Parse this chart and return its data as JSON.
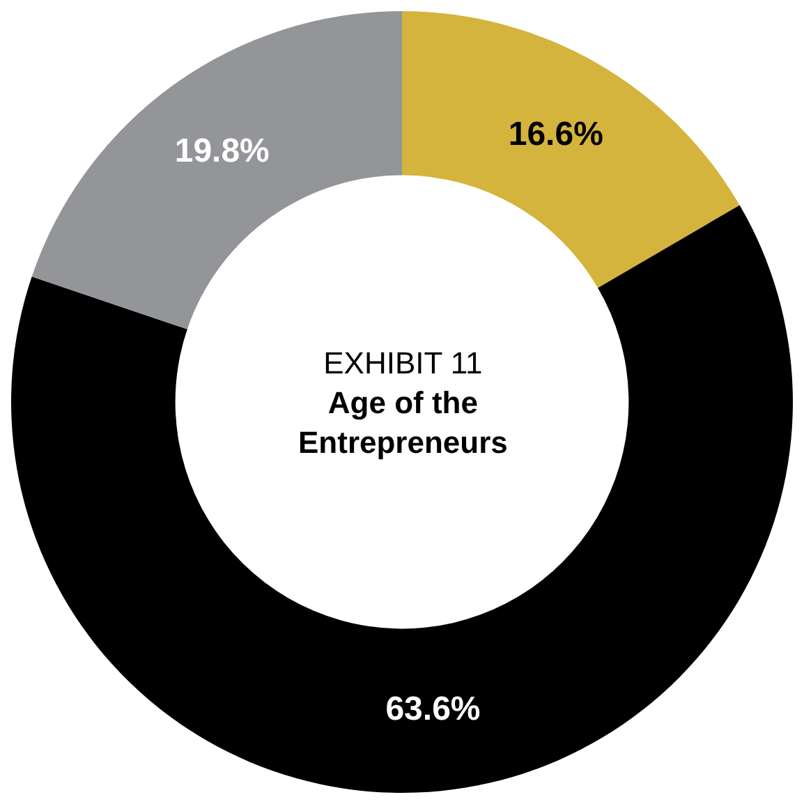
{
  "chart_data": {
    "type": "donut",
    "subtitle": "EXHIBIT 11",
    "title": "Age of the Entrepreneurs",
    "categories": [
      null,
      null,
      null
    ],
    "values": [
      16.6,
      63.6,
      19.8
    ],
    "colors": [
      "#d4b43c",
      "#000000",
      "#939598"
    ],
    "value_labels": [
      "16.6%",
      "63.6%",
      "19.8%"
    ],
    "legend": false
  }
}
